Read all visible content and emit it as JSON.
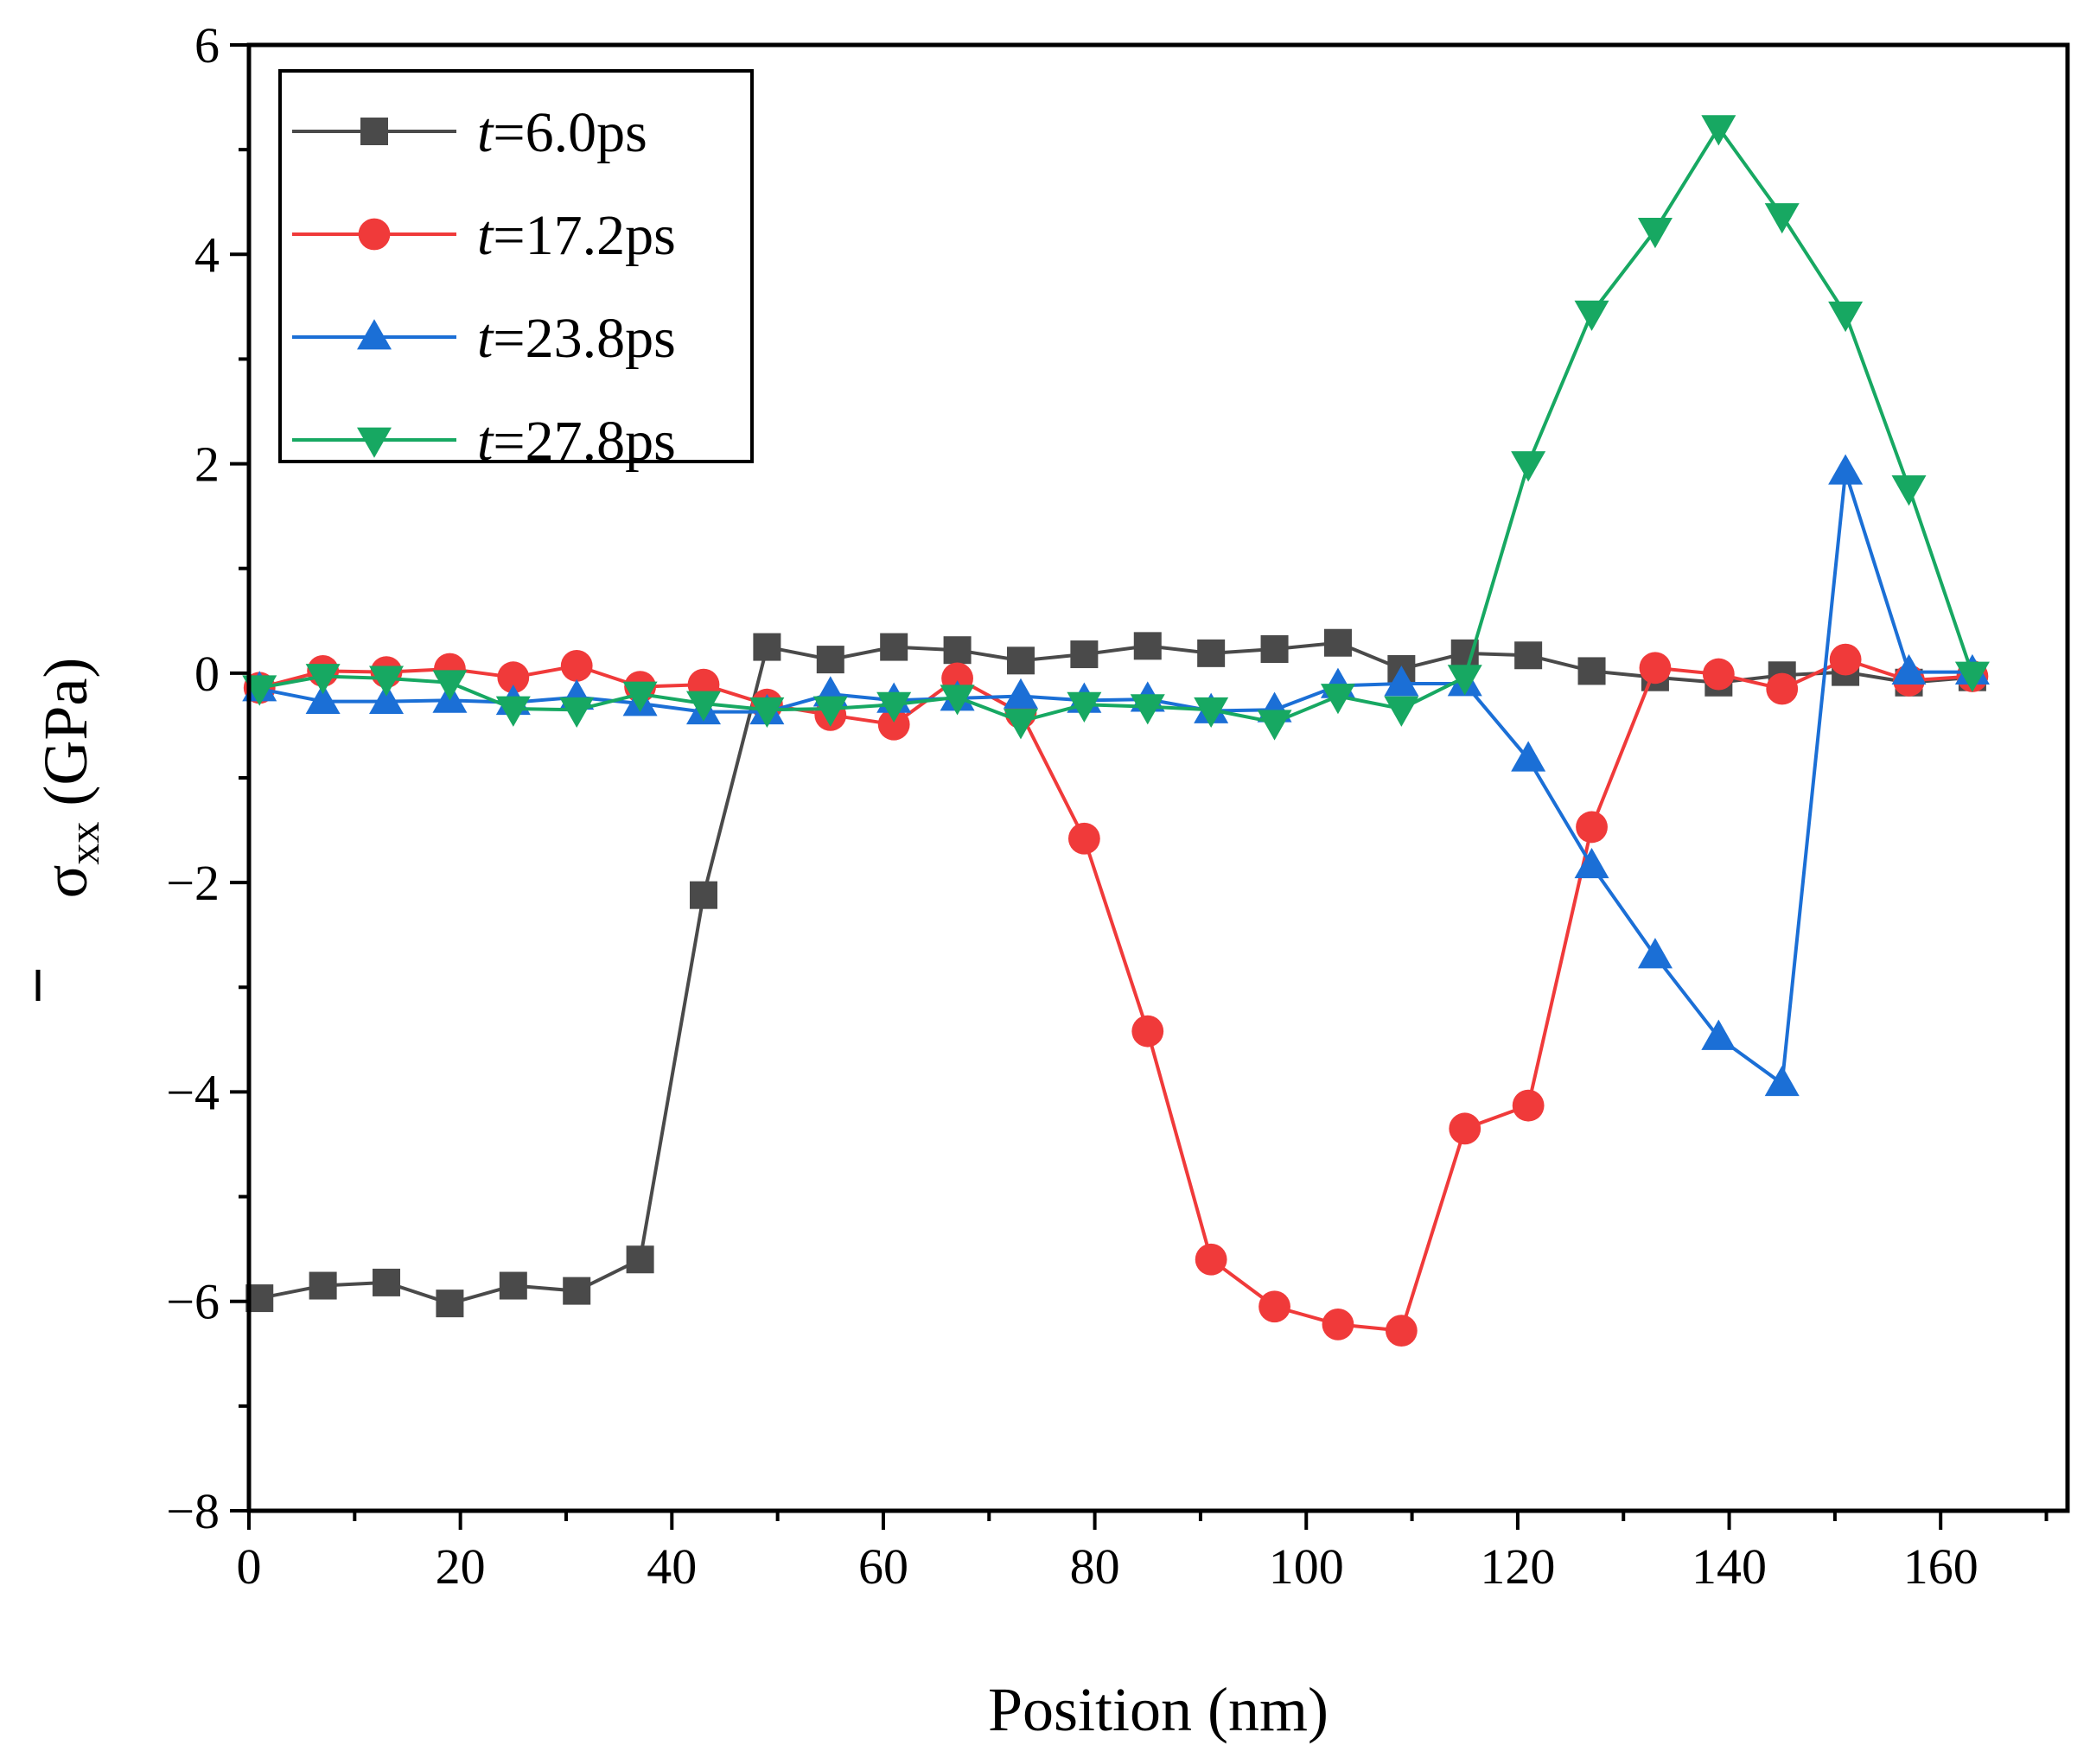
{
  "chart_data": {
    "type": "line",
    "title": "",
    "xlabel": "Position (nm)",
    "ylabel": "σ",
    "ylabel_sub": "xx",
    "ylabel_units": " (GPa)",
    "xlim": [
      0,
      172
    ],
    "ylim": [
      -8,
      6
    ],
    "xticks": [
      0,
      20,
      40,
      60,
      80,
      100,
      120,
      140,
      160
    ],
    "yticks": [
      -8,
      -6,
      -4,
      -2,
      0,
      2,
      4,
      6
    ],
    "xtick_labels": [
      "0",
      "20",
      "40",
      "60",
      "80",
      "100",
      "120",
      "140",
      "160"
    ],
    "ytick_labels": [
      "−8",
      "−6",
      "−4",
      "−2",
      "0",
      "2",
      "4",
      "6"
    ],
    "grid": false,
    "legend_position": "top-left",
    "x": [
      1,
      7,
      13,
      19,
      25,
      31,
      37,
      43,
      49,
      55,
      61,
      67,
      73,
      79,
      85,
      91,
      97,
      103,
      109,
      115,
      121,
      127,
      133,
      139,
      145,
      151,
      157,
      163
    ],
    "series": [
      {
        "name_var": "t",
        "name_rest": "=6.0ps",
        "color": "#4a4a4a",
        "marker": "square",
        "values": [
          -5.97,
          -5.85,
          -5.82,
          -6.02,
          -5.85,
          -5.9,
          -5.6,
          -2.12,
          0.25,
          0.13,
          0.25,
          0.22,
          0.12,
          0.18,
          0.26,
          0.19,
          0.23,
          0.29,
          0.04,
          0.19,
          0.17,
          0.02,
          -0.04,
          -0.09,
          -0.02,
          0.01,
          -0.09,
          -0.04
        ]
      },
      {
        "name_var": "t",
        "name_rest": "=17.2ps",
        "color": "#f03a3a",
        "marker": "circle",
        "values": [
          -0.14,
          0.02,
          0.01,
          0.04,
          -0.04,
          0.07,
          -0.13,
          -0.11,
          -0.3,
          -0.4,
          -0.49,
          -0.05,
          -0.38,
          -1.58,
          -3.42,
          -5.6,
          -6.05,
          -6.22,
          -6.28,
          -4.35,
          -4.13,
          -1.47,
          0.05,
          -0.01,
          -0.15,
          0.13,
          -0.07,
          -0.03
        ]
      },
      {
        "name_var": "t",
        "name_rest": "=23.8ps",
        "color": "#1b6fd6",
        "marker": "triangle-up",
        "values": [
          -0.15,
          -0.27,
          -0.27,
          -0.26,
          -0.28,
          -0.23,
          -0.29,
          -0.37,
          -0.37,
          -0.2,
          -0.26,
          -0.24,
          -0.22,
          -0.26,
          -0.25,
          -0.36,
          -0.35,
          -0.12,
          -0.1,
          -0.1,
          -0.82,
          -1.84,
          -2.7,
          -3.48,
          -3.92,
          1.92,
          0.01,
          0.01
        ]
      },
      {
        "name_var": "t",
        "name_rest": "=27.8ps",
        "color": "#17a862",
        "marker": "triangle-down",
        "values": [
          -0.14,
          -0.03,
          -0.05,
          -0.09,
          -0.34,
          -0.35,
          -0.2,
          -0.29,
          -0.35,
          -0.34,
          -0.3,
          -0.23,
          -0.46,
          -0.3,
          -0.32,
          -0.35,
          -0.47,
          -0.22,
          -0.34,
          -0.04,
          2.0,
          3.44,
          4.23,
          5.21,
          4.37,
          3.43,
          1.77,
          -0.01
        ]
      }
    ]
  }
}
